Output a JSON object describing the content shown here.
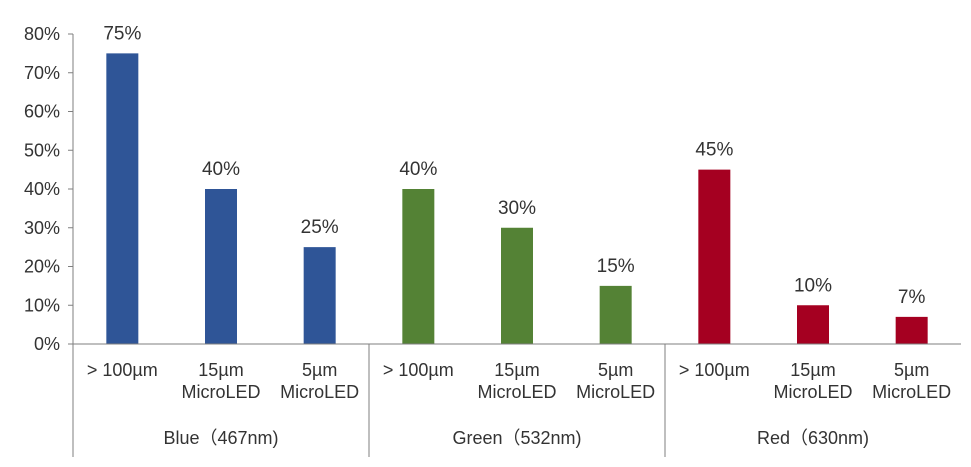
{
  "chart_data": {
    "type": "bar",
    "title": "",
    "xlabel": "",
    "ylabel": "",
    "ylim": [
      0,
      80
    ],
    "ytick_step": 10,
    "ytick_format": "percent",
    "grid": false,
    "legend": "none",
    "groups": [
      {
        "name": "Blue（467nm)",
        "color": "#2f5597",
        "categories": [
          [
            "> 100µm"
          ],
          [
            "15µm",
            "MicroLED"
          ],
          [
            "5µm",
            "MicroLED"
          ]
        ],
        "values": [
          75,
          40,
          25
        ],
        "labels": [
          "75%",
          "40%",
          "25%"
        ]
      },
      {
        "name": "Green（532nm)",
        "color": "#548235",
        "categories": [
          [
            "> 100µm"
          ],
          [
            "15µm",
            "MicroLED"
          ],
          [
            "5µm",
            "MicroLED"
          ]
        ],
        "values": [
          40,
          30,
          15
        ],
        "labels": [
          "40%",
          "30%",
          "15%"
        ]
      },
      {
        "name": "Red（630nm)",
        "color": "#a50021",
        "categories": [
          [
            "> 100µm"
          ],
          [
            "15µm",
            "MicroLED"
          ],
          [
            "5µm",
            "MicroLED"
          ]
        ],
        "values": [
          45,
          10,
          7
        ],
        "labels": [
          "45%",
          "10%",
          "7%"
        ]
      }
    ]
  }
}
